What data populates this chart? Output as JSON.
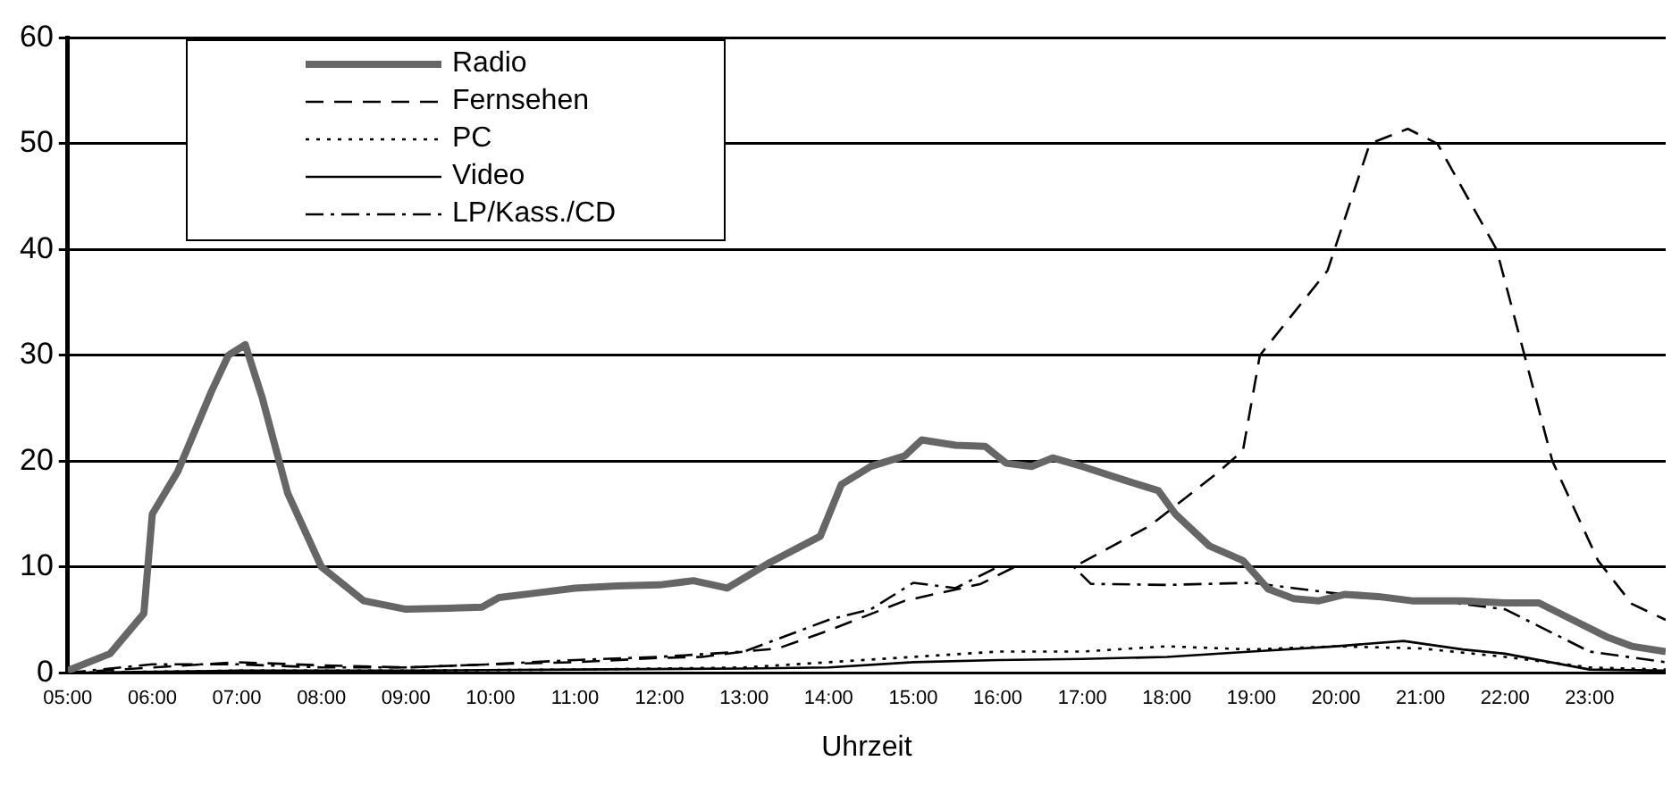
{
  "chart_data": {
    "type": "line",
    "xlabel": "Uhrzeit",
    "legend": "top left",
    "grid": "y",
    "marker": "none",
    "xlim": [
      5,
      23.9
    ],
    "ylim": [
      0,
      60
    ],
    "yticks": [
      0,
      10,
      20,
      30,
      40,
      50,
      60
    ],
    "xticks": [
      {
        "value": 5,
        "label": "05:00"
      },
      {
        "value": 6,
        "label": "06:00"
      },
      {
        "value": 7,
        "label": "07:00"
      },
      {
        "value": 8,
        "label": "08:00"
      },
      {
        "value": 9,
        "label": "09:00"
      },
      {
        "value": 10,
        "label": "10:00"
      },
      {
        "value": 11,
        "label": "11:00"
      },
      {
        "value": 12,
        "label": "12:00"
      },
      {
        "value": 13,
        "label": "13:00"
      },
      {
        "value": 14,
        "label": "14:00"
      },
      {
        "value": 15,
        "label": "15:00"
      },
      {
        "value": 16,
        "label": "16:00"
      },
      {
        "value": 17,
        "label": "17:00"
      },
      {
        "value": 18,
        "label": "18:00"
      },
      {
        "value": 19,
        "label": "19:00"
      },
      {
        "value": 20,
        "label": "20:00"
      },
      {
        "value": 21,
        "label": "21:00"
      },
      {
        "value": 22,
        "label": "22:00"
      },
      {
        "value": 23,
        "label": "23:00"
      }
    ],
    "series": [
      {
        "name": "Radio",
        "color": "#666666",
        "line_style": "solid",
        "x": [
          5.0,
          5.5,
          5.9,
          6.0,
          6.3,
          6.7,
          6.9,
          7.1,
          7.3,
          7.6,
          8.0,
          8.5,
          9.0,
          9.5,
          9.9,
          10.1,
          10.5,
          11.0,
          11.5,
          12.0,
          12.4,
          12.8,
          13.3,
          13.9,
          14.15,
          14.5,
          14.9,
          15.1,
          15.5,
          15.85,
          16.1,
          16.4,
          16.65,
          17.0,
          17.5,
          17.9,
          18.1,
          18.5,
          18.9,
          19.2,
          19.5,
          19.8,
          20.1,
          20.5,
          20.9,
          21.5,
          22.0,
          22.4,
          22.8,
          23.2,
          23.5,
          23.9
        ],
        "values": [
          0.2,
          1.8,
          5.6,
          15,
          19,
          26.6,
          30,
          31,
          26,
          17,
          10,
          6.8,
          6,
          6.1,
          6.2,
          7.1,
          7.5,
          8,
          8.2,
          8.3,
          8.7,
          8,
          10.4,
          12.9,
          17.8,
          19.5,
          20.5,
          22,
          21.5,
          21.4,
          19.8,
          19.5,
          20.3,
          19.5,
          18.2,
          17.2,
          15,
          12,
          10.6,
          7.9,
          7,
          6.8,
          7.4,
          7.2,
          6.8,
          6.8,
          6.6,
          6.6,
          5,
          3.4,
          2.5,
          2
        ]
      },
      {
        "name": "Fernsehen",
        "color": "#000000",
        "line_style": "dashed",
        "x": [
          5.0,
          6.0,
          7.0,
          8.0,
          9.0,
          10.0,
          11.0,
          12.0,
          12.5,
          13.0,
          13.4,
          14.0,
          14.9,
          15.8,
          16.2,
          16.9,
          17.8,
          18.6,
          18.9,
          19.1,
          19.9,
          20.4,
          20.85,
          21.2,
          21.9,
          22.56,
          23.1,
          23.5,
          23.9
        ],
        "values": [
          0,
          0.5,
          1,
          0.7,
          0.5,
          0.8,
          1,
          1.4,
          1.5,
          2,
          2.3,
          4,
          6.8,
          8.4,
          10,
          10,
          13.9,
          18.9,
          21,
          30,
          38,
          50,
          51.4,
          50,
          40,
          20,
          10.6,
          6.5,
          5
        ]
      },
      {
        "name": "PC",
        "color": "#000000",
        "line_style": "dotted",
        "x": [
          5.0,
          7.0,
          9.0,
          11.0,
          13.0,
          14.0,
          15.0,
          16.0,
          17.0,
          18.0,
          19.0,
          20.0,
          21.0,
          22.0,
          23.0,
          23.9
        ],
        "values": [
          0,
          0.2,
          0.2,
          0.3,
          0.5,
          1,
          1.5,
          2,
          2,
          2.5,
          2.2,
          2.5,
          2.3,
          1.5,
          0.5,
          0.3
        ]
      },
      {
        "name": "Video",
        "color": "#000000",
        "line_style": "solid",
        "x": [
          5.0,
          7.0,
          9.0,
          11.0,
          13.0,
          14.0,
          15.0,
          16.0,
          17.0,
          18.0,
          19.0,
          20.0,
          20.8,
          21.5,
          22.0,
          23.0,
          23.9
        ],
        "values": [
          0,
          0.2,
          0.2,
          0.3,
          0.4,
          0.5,
          1,
          1.2,
          1.3,
          1.5,
          2,
          2.5,
          3,
          2.2,
          1.8,
          0.3,
          0.2
        ]
      },
      {
        "name": "LP/Kass./CD",
        "color": "#000000",
        "line_style": "dashdot",
        "x": [
          5.0,
          6.0,
          7.0,
          8.0,
          9.0,
          10.0,
          11.0,
          12.0,
          13.0,
          13.5,
          14.0,
          14.5,
          15.0,
          15.5,
          16.0,
          16.5,
          16.9,
          17.1,
          18.0,
          19.0,
          19.5,
          20.0,
          20.5,
          21.0,
          22.0,
          23.0,
          23.9
        ],
        "values": [
          0,
          0.8,
          0.8,
          0.5,
          0.5,
          0.8,
          1.2,
          1.5,
          2,
          3.5,
          5,
          6,
          8.5,
          8,
          10,
          10,
          10,
          8.4,
          8.3,
          8.5,
          8,
          7.5,
          7,
          7,
          6,
          2,
          1
        ]
      }
    ]
  }
}
